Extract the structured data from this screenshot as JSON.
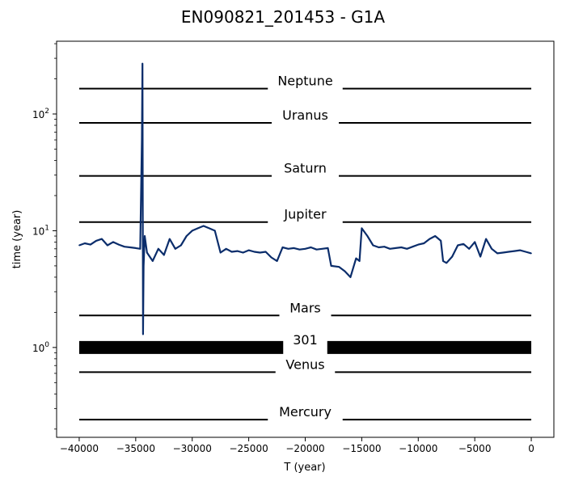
{
  "chart_data": {
    "type": "line",
    "title": "EN090821_201453 - G1A",
    "xlabel": "T (year)",
    "ylabel": "time (year)",
    "xlim": [
      -42000,
      2000
    ],
    "ylim": [
      0.17,
      420
    ],
    "yscale": "log",
    "x_ticks": [
      {
        "value": -40000,
        "label": "−40000"
      },
      {
        "value": -35000,
        "label": "−35000"
      },
      {
        "value": -30000,
        "label": "−30000"
      },
      {
        "value": -25000,
        "label": "−25000"
      },
      {
        "value": -20000,
        "label": "−20000"
      },
      {
        "value": -15000,
        "label": "−15000"
      },
      {
        "value": -10000,
        "label": "−10000"
      },
      {
        "value": -5000,
        "label": "−5000"
      },
      {
        "value": 0,
        "label": "0"
      }
    ],
    "y_ticks": [
      {
        "value": 1,
        "base": "10",
        "exp": "0"
      },
      {
        "value": 10,
        "base": "10",
        "exp": "1"
      },
      {
        "value": 100,
        "base": "10",
        "exp": "2"
      }
    ],
    "reference_lines": [
      {
        "name": "Neptune",
        "y": 164.8,
        "x": [
          -40000,
          0
        ]
      },
      {
        "name": "Uranus",
        "y": 84.0,
        "x": [
          -40000,
          0
        ]
      },
      {
        "name": "Saturn",
        "y": 29.5,
        "x": [
          -40000,
          0
        ]
      },
      {
        "name": "Jupiter",
        "y": 11.86,
        "x": [
          -40000,
          0
        ]
      },
      {
        "name": "Mars",
        "y": 1.88,
        "x": [
          -40000,
          0
        ]
      },
      {
        "name": "301",
        "y": 1.0,
        "x": [
          -40000,
          0
        ]
      },
      {
        "name": "Venus",
        "y": 0.615,
        "x": [
          -40000,
          0
        ]
      },
      {
        "name": "Mercury",
        "y": 0.241,
        "x": [
          -40000,
          0
        ]
      }
    ],
    "series": [
      {
        "color": "#0b2d6b",
        "points": [
          [
            -40000,
            7.5
          ],
          [
            -39500,
            7.8
          ],
          [
            -39000,
            7.6
          ],
          [
            -38500,
            8.2
          ],
          [
            -38000,
            8.5
          ],
          [
            -37500,
            7.5
          ],
          [
            -37000,
            8.0
          ],
          [
            -36500,
            7.6
          ],
          [
            -36000,
            7.3
          ],
          [
            -35500,
            7.2
          ],
          [
            -35000,
            7.1
          ],
          [
            -34600,
            7.0
          ],
          [
            -34450,
            60
          ],
          [
            -34400,
            270
          ],
          [
            -34350,
            1.3
          ],
          [
            -34300,
            5.0
          ],
          [
            -34200,
            9.0
          ],
          [
            -34000,
            6.5
          ],
          [
            -33500,
            5.5
          ],
          [
            -33000,
            7.0
          ],
          [
            -32500,
            6.2
          ],
          [
            -32000,
            8.5
          ],
          [
            -31500,
            7.0
          ],
          [
            -31000,
            7.5
          ],
          [
            -30500,
            9.0
          ],
          [
            -30000,
            10.0
          ],
          [
            -29500,
            10.5
          ],
          [
            -29000,
            11.0
          ],
          [
            -28500,
            10.5
          ],
          [
            -28000,
            10.0
          ],
          [
            -27500,
            6.5
          ],
          [
            -27000,
            7.0
          ],
          [
            -26500,
            6.6
          ],
          [
            -26000,
            6.7
          ],
          [
            -25500,
            6.5
          ],
          [
            -25000,
            6.8
          ],
          [
            -24500,
            6.6
          ],
          [
            -24000,
            6.5
          ],
          [
            -23500,
            6.6
          ],
          [
            -23000,
            5.9
          ],
          [
            -22500,
            5.5
          ],
          [
            -22000,
            7.2
          ],
          [
            -21500,
            7.0
          ],
          [
            -21000,
            7.1
          ],
          [
            -20500,
            6.9
          ],
          [
            -20000,
            7.0
          ],
          [
            -19500,
            7.2
          ],
          [
            -19000,
            6.9
          ],
          [
            -18500,
            7.0
          ],
          [
            -18000,
            7.1
          ],
          [
            -17700,
            5.0
          ],
          [
            -17000,
            4.9
          ],
          [
            -16500,
            4.5
          ],
          [
            -16000,
            4.0
          ],
          [
            -15500,
            5.8
          ],
          [
            -15200,
            5.5
          ],
          [
            -15000,
            10.5
          ],
          [
            -14500,
            9.0
          ],
          [
            -14000,
            7.5
          ],
          [
            -13500,
            7.2
          ],
          [
            -13000,
            7.3
          ],
          [
            -12500,
            7.0
          ],
          [
            -12000,
            7.1
          ],
          [
            -11500,
            7.2
          ],
          [
            -11000,
            7.0
          ],
          [
            -10500,
            7.3
          ],
          [
            -10000,
            7.6
          ],
          [
            -9500,
            7.8
          ],
          [
            -9000,
            8.5
          ],
          [
            -8500,
            9.0
          ],
          [
            -8000,
            8.2
          ],
          [
            -7800,
            5.5
          ],
          [
            -7500,
            5.3
          ],
          [
            -7000,
            6.0
          ],
          [
            -6500,
            7.5
          ],
          [
            -6000,
            7.7
          ],
          [
            -5500,
            7.0
          ],
          [
            -5000,
            8.0
          ],
          [
            -4500,
            6.0
          ],
          [
            -4000,
            8.5
          ],
          [
            -3500,
            7.0
          ],
          [
            -3000,
            6.4
          ],
          [
            -2500,
            6.5
          ],
          [
            -2000,
            6.6
          ],
          [
            -1500,
            6.7
          ],
          [
            -1000,
            6.8
          ],
          [
            -500,
            6.6
          ],
          [
            0,
            6.4
          ]
        ]
      }
    ],
    "grid": false
  }
}
